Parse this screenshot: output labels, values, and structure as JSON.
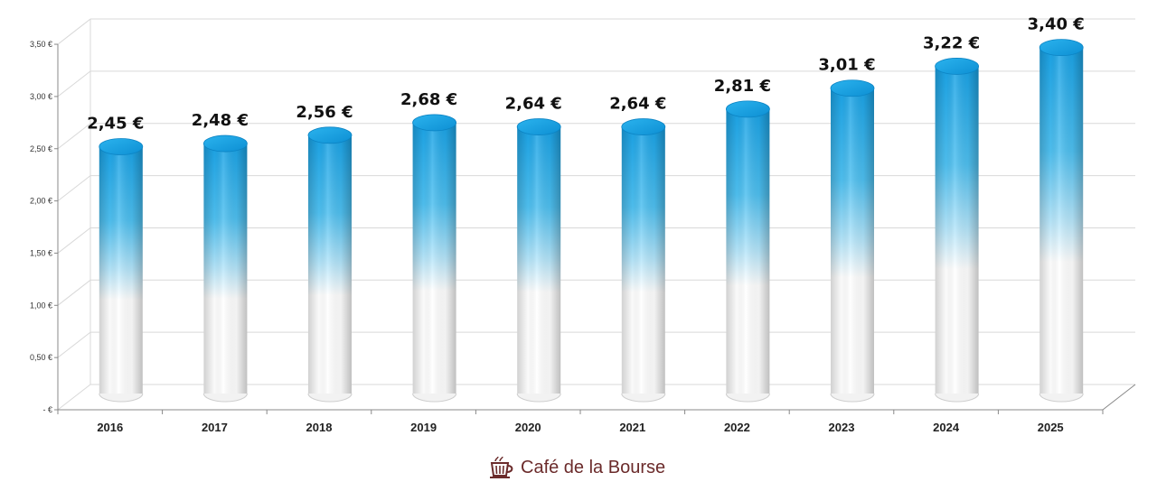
{
  "chart_data": {
    "type": "bar",
    "style": "3d-cylinder",
    "categories": [
      "2016",
      "2017",
      "2018",
      "2019",
      "2020",
      "2021",
      "2022",
      "2023",
      "2024",
      "2025"
    ],
    "values": [
      2.45,
      2.48,
      2.56,
      2.68,
      2.64,
      2.64,
      2.81,
      3.01,
      3.22,
      3.4
    ],
    "data_labels": [
      "2,45 €",
      "2,48 €",
      "2,56 €",
      "2,68 €",
      "2,64 €",
      "2,64 €",
      "2,81 €",
      "3,01 €",
      "3,22 €",
      "3,40 €"
    ],
    "y_ticks": [
      0,
      0.5,
      1,
      1.5,
      2,
      2.5,
      3,
      3.5
    ],
    "y_tick_labels": [
      "-  €",
      "0,50 €",
      "1,00 €",
      "1,50 €",
      "2,00 €",
      "2,50 €",
      "3,00 €",
      "3,50 €"
    ],
    "ylim": [
      0,
      3.5
    ],
    "grid": true,
    "legend": "none",
    "colors": {
      "bar_top": "#1ea8e8",
      "bar_mid": "#7fd3f7",
      "bar_bottom": "#ffffff",
      "grid": "#d9d9d9"
    }
  },
  "brand": {
    "name": "Café de la Bourse",
    "icon": "coffee-cup-icon",
    "color": "#6b2b2b"
  }
}
